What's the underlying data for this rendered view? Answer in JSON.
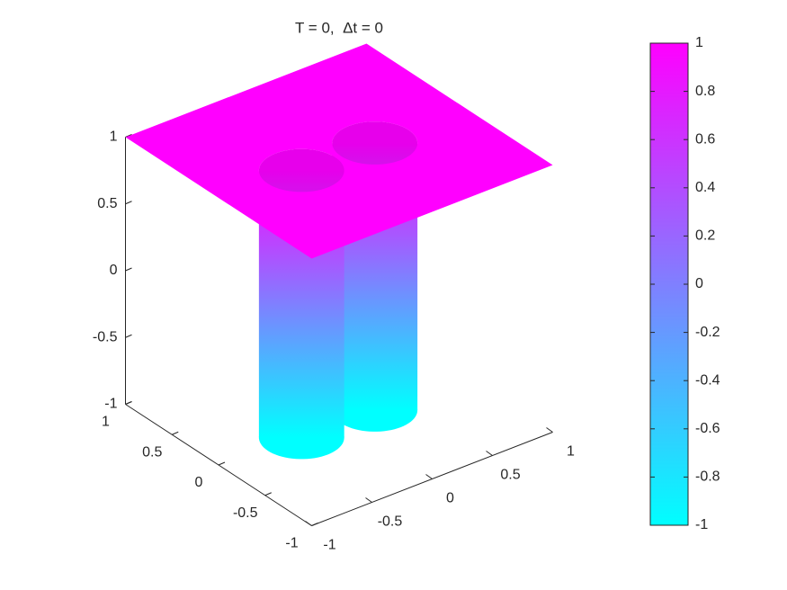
{
  "chart_data": {
    "type": "surface",
    "title": "T = 0,  Δt = 0",
    "xlim": [
      -1,
      1
    ],
    "xticks": [
      -1,
      -0.5,
      0,
      0.5,
      1
    ],
    "ylim": [
      -1,
      1
    ],
    "yticks": [
      -1,
      -0.5,
      0,
      0.5,
      1
    ],
    "zlim": [
      -1,
      1
    ],
    "zticks": [
      -1,
      -0.5,
      0,
      0.5,
      1
    ],
    "surface": {
      "z_top": 1,
      "z_bottom": -1,
      "wells": [
        {
          "x": 0.25,
          "y": -0.06,
          "r": 0.28
        },
        {
          "x": -0.35,
          "y": -0.05,
          "r": 0.28
        }
      ]
    },
    "colormap": [
      "#00ffff",
      "#ff00ff"
    ],
    "clim": [
      -1,
      1
    ],
    "cticks": [
      -1,
      -0.8,
      -0.6,
      -0.4,
      -0.2,
      0,
      0.2,
      0.4,
      0.6,
      0.8,
      1
    ]
  }
}
